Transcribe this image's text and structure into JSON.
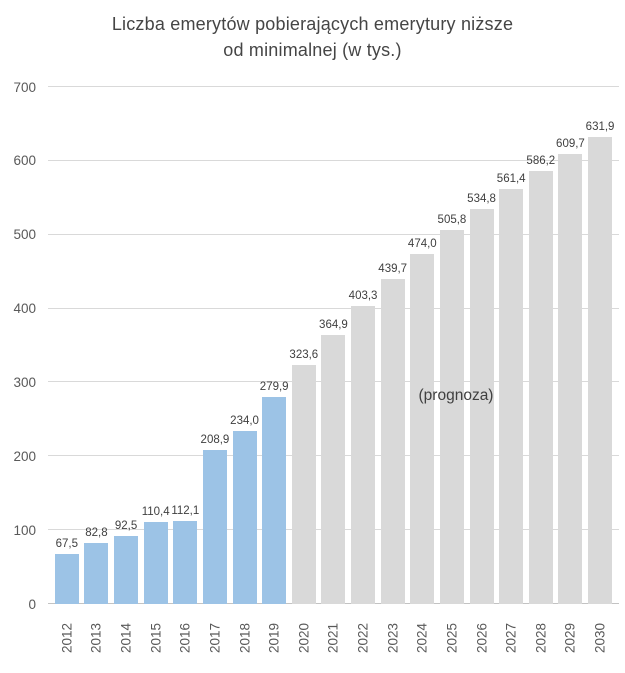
{
  "title": {
    "line1": "Liczba emerytów pobierających emerytury niższe",
    "line2": "od minimalnej (w tys.)"
  },
  "chart_data": {
    "type": "bar",
    "title": "Liczba emerytów pobierających emerytury niższe od minimalnej (w tys.)",
    "categories": [
      "2012",
      "2013",
      "2014",
      "2015",
      "2016",
      "2017",
      "2018",
      "2019",
      "2020",
      "2021",
      "2022",
      "2023",
      "2024",
      "2025",
      "2026",
      "2027",
      "2028",
      "2029",
      "2030"
    ],
    "values": [
      67.5,
      82.8,
      92.5,
      110.4,
      112.1,
      208.9,
      234.0,
      279.9,
      323.6,
      364.9,
      403.3,
      439.7,
      474.0,
      505.8,
      534.8,
      561.4,
      586.2,
      609.7,
      631.9
    ],
    "value_labels": [
      "67,5",
      "82,8",
      "92,5",
      "110,4",
      "112,1",
      "208,9",
      "234,0",
      "279,9",
      "323,6",
      "364,9",
      "403,3",
      "439,7",
      "474,0",
      "505,8",
      "534,8",
      "561,4",
      "586,2",
      "609,7",
      "631,9"
    ],
    "annotation": "(prognoza)",
    "forecast_start_index": 8,
    "colors": {
      "actual_bar": "#9cc3e6",
      "forecast_bar": "#d9d9d9",
      "gridline": "#d9d9d9"
    },
    "xlabel": "",
    "ylabel": "",
    "ylim": [
      0,
      700
    ],
    "yticks": [
      0,
      100,
      200,
      300,
      400,
      500,
      600,
      700
    ],
    "grid": "horizontal",
    "legend": "none"
  }
}
